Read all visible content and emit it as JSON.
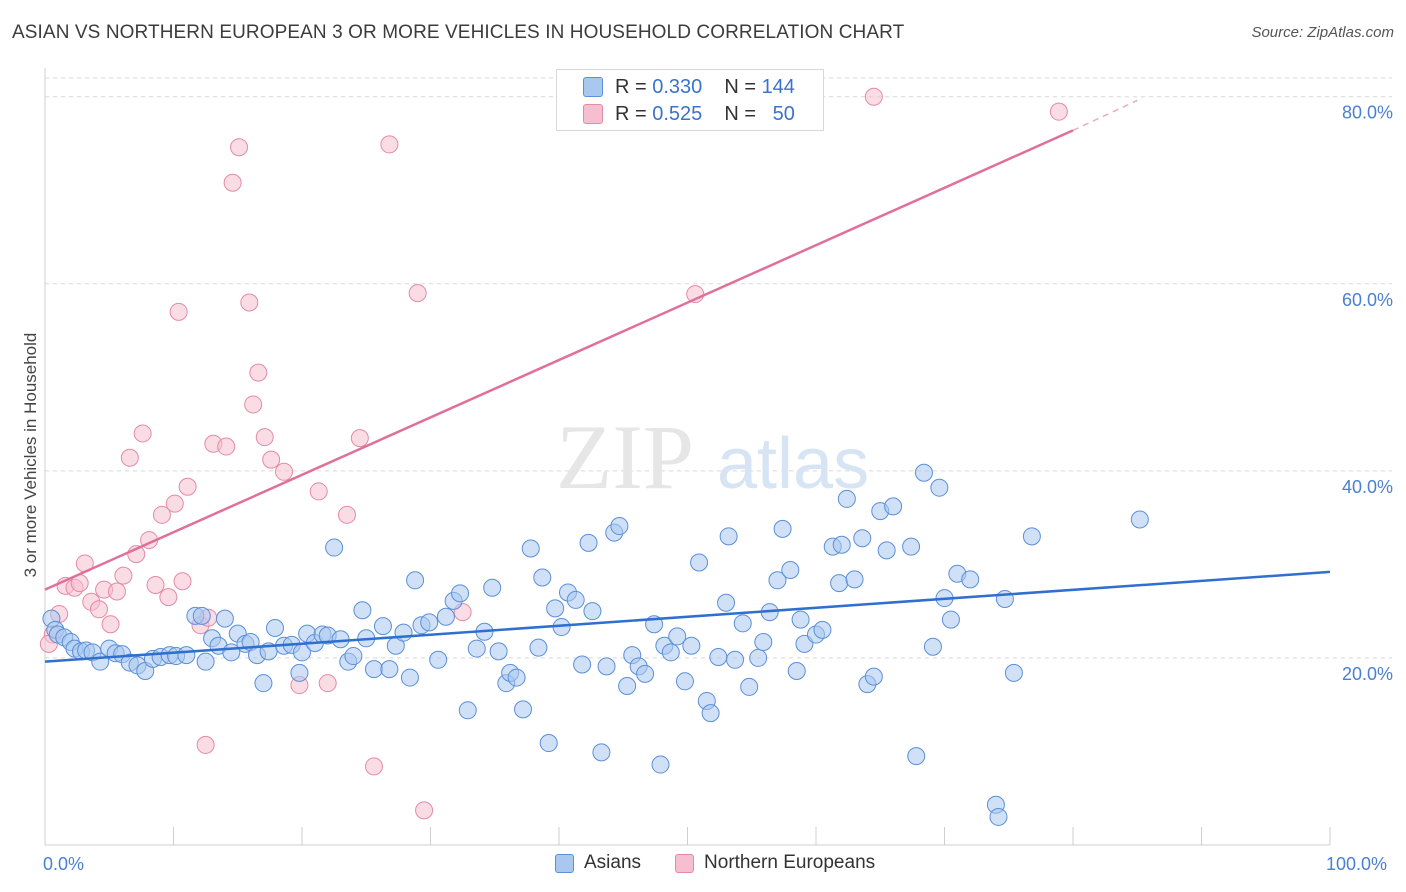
{
  "title": "ASIAN VS NORTHERN EUROPEAN 3 OR MORE VEHICLES IN HOUSEHOLD CORRELATION CHART",
  "source": "Source: ZipAtlas.com",
  "watermark": {
    "zip": "ZIP",
    "atlas": "atlas"
  },
  "legend": {
    "rows": [
      {
        "r_label": "R =",
        "r_value": "0.330",
        "n_label": "N =",
        "n_value": "144"
      },
      {
        "r_label": "R =",
        "r_value": "0.525",
        "n_label": "N =",
        "n_value": "50"
      }
    ]
  },
  "bottom_legend": {
    "asians": "Asians",
    "northern": "Northern Europeans"
  },
  "colors": {
    "asian_fill": "#a9c8f0",
    "asian_stroke": "#5b8fd8",
    "asian_line": "#2f6fd0",
    "northern_fill": "#f6bfd0",
    "northern_stroke": "#e58aa6",
    "northern_line": "#e0709a",
    "grid": "#d8d8d8",
    "axis_text": "#4a7fd4"
  },
  "chart_data": {
    "type": "scatter",
    "title": "ASIAN VS NORTHERN EUROPEAN 3 OR MORE VEHICLES IN HOUSEHOLD CORRELATION CHART",
    "xlabel": "",
    "ylabel": "3 or more Vehicles in Household",
    "xlim": [
      0,
      100
    ],
    "ylim": [
      0,
      82
    ],
    "x_tick_labels": [
      "0.0%",
      "100.0%"
    ],
    "y_ticks": [
      20,
      40,
      60,
      80
    ],
    "y_tick_labels": [
      "20.0%",
      "40.0%",
      "60.0%",
      "80.0%"
    ],
    "series": [
      {
        "name": "Asians",
        "r": 0.33,
        "n": 144,
        "trend": {
          "x0": 0,
          "y0": 19.6,
          "x1": 100,
          "y1": 29.2
        },
        "points": [
          [
            0.5,
            24.2
          ],
          [
            0.8,
            23
          ],
          [
            1,
            22.5
          ],
          [
            1.5,
            22.2
          ],
          [
            2,
            21.7
          ],
          [
            2.3,
            21
          ],
          [
            2.8,
            20.7
          ],
          [
            3.2,
            20.8
          ],
          [
            3.7,
            20.6
          ],
          [
            4.3,
            19.6
          ],
          [
            5,
            21
          ],
          [
            5.5,
            20.5
          ],
          [
            6,
            20.4
          ],
          [
            6.6,
            19.5
          ],
          [
            7.2,
            19.2
          ],
          [
            7.8,
            18.6
          ],
          [
            8.4,
            19.9
          ],
          [
            9,
            20.1
          ],
          [
            9.7,
            20.3
          ],
          [
            10.2,
            20.2
          ],
          [
            11,
            20.3
          ],
          [
            11.7,
            24.5
          ],
          [
            12.2,
            24.5
          ],
          [
            12.5,
            19.6
          ],
          [
            13,
            22.1
          ],
          [
            13.5,
            21.3
          ],
          [
            14,
            24.2
          ],
          [
            14.5,
            20.6
          ],
          [
            15,
            22.6
          ],
          [
            15.6,
            21.5
          ],
          [
            16,
            21.7
          ],
          [
            16.5,
            20.3
          ],
          [
            17,
            17.3
          ],
          [
            17.4,
            20.7
          ],
          [
            17.9,
            23.2
          ],
          [
            18.6,
            21.3
          ],
          [
            19.2,
            21.4
          ],
          [
            19.8,
            18.4
          ],
          [
            20,
            20.6
          ],
          [
            20.4,
            22.6
          ],
          [
            21,
            21.6
          ],
          [
            21.6,
            22.5
          ],
          [
            22,
            22.4
          ],
          [
            22.5,
            31.8
          ],
          [
            23,
            22
          ],
          [
            23.6,
            19.6
          ],
          [
            24,
            20.2
          ],
          [
            24.7,
            25.1
          ],
          [
            25,
            22.1
          ],
          [
            25.6,
            18.8
          ],
          [
            26.3,
            23.4
          ],
          [
            26.8,
            18.8
          ],
          [
            27.3,
            21.3
          ],
          [
            27.9,
            22.7
          ],
          [
            28.4,
            17.9
          ],
          [
            28.8,
            28.3
          ],
          [
            29.3,
            23.5
          ],
          [
            29.9,
            23.8
          ],
          [
            30.6,
            19.8
          ],
          [
            31.2,
            24.4
          ],
          [
            31.8,
            26.1
          ],
          [
            32.3,
            26.9
          ],
          [
            32.9,
            14.4
          ],
          [
            33.6,
            21
          ],
          [
            34.2,
            22.8
          ],
          [
            34.8,
            27.5
          ],
          [
            35.3,
            20.7
          ],
          [
            35.9,
            17.3
          ],
          [
            36.2,
            18.4
          ],
          [
            36.7,
            17.9
          ],
          [
            37.2,
            14.5
          ],
          [
            37.8,
            31.7
          ],
          [
            38.4,
            21.1
          ],
          [
            38.7,
            28.6
          ],
          [
            39.2,
            10.9
          ],
          [
            39.7,
            25.3
          ],
          [
            40.2,
            23.3
          ],
          [
            40.7,
            27
          ],
          [
            41.3,
            26.2
          ],
          [
            41.8,
            19.3
          ],
          [
            42.3,
            32.3
          ],
          [
            42.6,
            25
          ],
          [
            43.3,
            9.9
          ],
          [
            43.7,
            19.1
          ],
          [
            44.3,
            33.4
          ],
          [
            44.7,
            34.1
          ],
          [
            45.3,
            17
          ],
          [
            45.7,
            20.3
          ],
          [
            46.2,
            19.1
          ],
          [
            46.7,
            18.3
          ],
          [
            47.4,
            23.6
          ],
          [
            47.9,
            8.6
          ],
          [
            48.2,
            21.3
          ],
          [
            48.7,
            20.6
          ],
          [
            49.2,
            22.3
          ],
          [
            49.8,
            17.5
          ],
          [
            50.3,
            21.3
          ],
          [
            50.9,
            30.2
          ],
          [
            51.5,
            15.4
          ],
          [
            51.8,
            14.1
          ],
          [
            52.4,
            20.1
          ],
          [
            53,
            25.9
          ],
          [
            53.2,
            33
          ],
          [
            53.7,
            19.8
          ],
          [
            54.3,
            23.7
          ],
          [
            54.8,
            16.9
          ],
          [
            55.5,
            20
          ],
          [
            55.9,
            21.7
          ],
          [
            56.4,
            24.9
          ],
          [
            57,
            28.3
          ],
          [
            57.4,
            33.8
          ],
          [
            58,
            29.4
          ],
          [
            58.5,
            18.6
          ],
          [
            58.8,
            24.1
          ],
          [
            59.1,
            21.5
          ],
          [
            60,
            22.5
          ],
          [
            60.5,
            23
          ],
          [
            61.3,
            31.9
          ],
          [
            61.8,
            28
          ],
          [
            62,
            32.1
          ],
          [
            62.4,
            37
          ],
          [
            63,
            28.4
          ],
          [
            63.6,
            32.8
          ],
          [
            64,
            17.2
          ],
          [
            64.5,
            18
          ],
          [
            65,
            35.7
          ],
          [
            65.5,
            31.5
          ],
          [
            66,
            36.2
          ],
          [
            67.4,
            31.9
          ],
          [
            67.8,
            9.5
          ],
          [
            68.4,
            39.8
          ],
          [
            69.1,
            21.2
          ],
          [
            69.6,
            38.2
          ],
          [
            70,
            26.4
          ],
          [
            70.5,
            24.1
          ],
          [
            71,
            29
          ],
          [
            72,
            28.4
          ],
          [
            74,
            4.3
          ],
          [
            74.2,
            3
          ],
          [
            74.7,
            26.3
          ],
          [
            75.4,
            18.4
          ],
          [
            76.8,
            33
          ],
          [
            85.2,
            34.8
          ]
        ]
      },
      {
        "name": "Northern Europeans",
        "r": 0.525,
        "n": 50,
        "trend": {
          "x0": 0,
          "y0": 27.3,
          "x1": 80,
          "y1": 76.4
        },
        "trend_dashed": {
          "x0": 80,
          "y0": 76.4,
          "x1": 85,
          "y1": 79.6
        },
        "points": [
          [
            0.6,
            22.5
          ],
          [
            1.1,
            24.7
          ],
          [
            1.6,
            27.7
          ],
          [
            2.3,
            27.5
          ],
          [
            2.7,
            28
          ],
          [
            3.1,
            30.1
          ],
          [
            3.6,
            26
          ],
          [
            4.2,
            25.2
          ],
          [
            4.6,
            27.3
          ],
          [
            5.1,
            23.6
          ],
          [
            5.6,
            27.1
          ],
          [
            6.1,
            28.8
          ],
          [
            6.6,
            41.4
          ],
          [
            7.1,
            31.1
          ],
          [
            7.6,
            44
          ],
          [
            8.1,
            32.6
          ],
          [
            8.6,
            27.8
          ],
          [
            9.1,
            35.3
          ],
          [
            9.6,
            26.5
          ],
          [
            10.1,
            36.5
          ],
          [
            10.4,
            57
          ],
          [
            10.7,
            28.2
          ],
          [
            11.1,
            38.3
          ],
          [
            12.1,
            23.5
          ],
          [
            12.5,
            10.7
          ],
          [
            12.7,
            24.3
          ],
          [
            13.1,
            42.9
          ],
          [
            14.1,
            42.6
          ],
          [
            14.6,
            70.8
          ],
          [
            15.1,
            74.6
          ],
          [
            15.9,
            58
          ],
          [
            16.2,
            47.1
          ],
          [
            16.6,
            50.5
          ],
          [
            17.1,
            43.6
          ],
          [
            17.6,
            41.2
          ],
          [
            18.6,
            39.9
          ],
          [
            19.8,
            17.1
          ],
          [
            21.3,
            37.8
          ],
          [
            22,
            17.3
          ],
          [
            23.5,
            35.3
          ],
          [
            24.5,
            43.5
          ],
          [
            25.6,
            8.4
          ],
          [
            26.8,
            74.9
          ],
          [
            29,
            59
          ],
          [
            29.5,
            3.7
          ],
          [
            32.5,
            24.9
          ],
          [
            50.6,
            58.9
          ],
          [
            64.5,
            80
          ],
          [
            78.9,
            78.4
          ],
          [
            0.3,
            21.5
          ]
        ]
      }
    ]
  }
}
